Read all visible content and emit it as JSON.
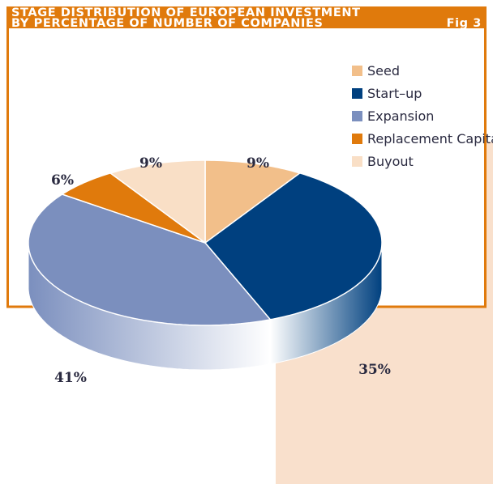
{
  "chart_data": {
    "type": "pie3d",
    "title": [
      "STAGE DISTRIBUTION OF EUROPEAN INVESTMENT",
      "BY PERCENTAGE OF NUMBER OF COMPANIES"
    ],
    "figure_label": "Fig 3",
    "categories": [
      "Seed",
      "Start–up",
      "Expansion",
      "Replacement Capital",
      "Buyout"
    ],
    "values": [
      9,
      35,
      41,
      6,
      9
    ],
    "value_labels": [
      "9%",
      "35%",
      "41%",
      "6%",
      "9%"
    ],
    "colors": [
      "#f2bf8a",
      "#00407f",
      "#7b8fbe",
      "#e07a0c",
      "#f9dfc6"
    ]
  }
}
